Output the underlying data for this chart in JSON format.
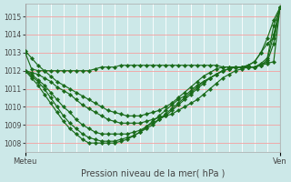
{
  "title": "Pression niveau de la mer( hPa )",
  "xlabel_left": "Meteu",
  "xlabel_right": "Ven",
  "ylim": [
    1007.5,
    1015.7
  ],
  "yticks": [
    1008,
    1009,
    1010,
    1011,
    1012,
    1013,
    1014,
    1015
  ],
  "bg_color": "#cce8e8",
  "grid_color_h": "#f5a0a0",
  "grid_color_v": "#ffffff",
  "line_color": "#1a6b1a",
  "markersize": 2.2,
  "linewidth": 0.85,
  "series": [
    [
      1013.0,
      1012.1,
      1012.0,
      1012.0,
      1012.0,
      1012.0,
      1012.0,
      1012.0,
      1012.0,
      1012.0,
      1012.0,
      1012.1,
      1012.2,
      1012.2,
      1012.2,
      1012.3,
      1012.3,
      1012.3,
      1012.3,
      1012.3,
      1012.3,
      1012.3,
      1012.3,
      1012.3,
      1012.3,
      1012.3,
      1012.3,
      1012.3,
      1012.3,
      1012.3,
      1012.3,
      1012.2,
      1012.2,
      1012.2,
      1012.2,
      1012.3,
      1012.5,
      1013.0,
      1013.5,
      1013.8,
      1015.5
    ],
    [
      1012.0,
      1011.9,
      1011.8,
      1011.6,
      1011.4,
      1011.1,
      1010.9,
      1010.7,
      1010.4,
      1010.1,
      1009.9,
      1009.7,
      1009.5,
      1009.3,
      1009.2,
      1009.1,
      1009.1,
      1009.1,
      1009.1,
      1009.2,
      1009.3,
      1009.4,
      1009.5,
      1009.6,
      1009.8,
      1010.0,
      1010.2,
      1010.4,
      1010.7,
      1011.0,
      1011.3,
      1011.6,
      1011.8,
      1012.0,
      1012.1,
      1012.2,
      1012.2,
      1012.3,
      1012.4,
      1012.5,
      1015.5
    ],
    [
      1012.0,
      1011.8,
      1011.5,
      1011.2,
      1010.8,
      1010.4,
      1010.0,
      1009.7,
      1009.3,
      1009.0,
      1008.8,
      1008.6,
      1008.5,
      1008.5,
      1008.5,
      1008.5,
      1008.5,
      1008.6,
      1008.7,
      1008.9,
      1009.1,
      1009.3,
      1009.5,
      1009.8,
      1010.1,
      1010.4,
      1010.7,
      1011.0,
      1011.3,
      1011.6,
      1011.8,
      1012.0,
      1012.1,
      1012.2,
      1012.2,
      1012.2,
      1012.2,
      1012.3,
      1012.5,
      1013.5,
      1015.5
    ],
    [
      1012.0,
      1011.7,
      1011.4,
      1011.0,
      1010.5,
      1010.0,
      1009.5,
      1009.1,
      1008.8,
      1008.5,
      1008.3,
      1008.2,
      1008.1,
      1008.1,
      1008.1,
      1008.2,
      1008.3,
      1008.4,
      1008.6,
      1008.8,
      1009.0,
      1009.3,
      1009.6,
      1009.9,
      1010.2,
      1010.5,
      1010.8,
      1011.1,
      1011.4,
      1011.6,
      1011.8,
      1012.0,
      1012.1,
      1012.2,
      1012.2,
      1012.2,
      1012.2,
      1012.3,
      1012.6,
      1014.0,
      1015.5
    ],
    [
      1012.0,
      1011.6,
      1011.2,
      1010.7,
      1010.2,
      1009.7,
      1009.2,
      1008.8,
      1008.5,
      1008.2,
      1008.0,
      1008.0,
      1008.0,
      1008.0,
      1008.0,
      1008.1,
      1008.2,
      1008.4,
      1008.6,
      1008.9,
      1009.2,
      1009.5,
      1009.8,
      1010.1,
      1010.4,
      1010.6,
      1010.9,
      1011.2,
      1011.4,
      1011.6,
      1011.8,
      1012.0,
      1012.1,
      1012.2,
      1012.2,
      1012.2,
      1012.2,
      1012.4,
      1012.7,
      1014.5,
      1015.5
    ],
    [
      1013.1,
      1012.7,
      1012.3,
      1012.0,
      1011.7,
      1011.4,
      1011.2,
      1011.0,
      1010.8,
      1010.6,
      1010.4,
      1010.2,
      1010.0,
      1009.8,
      1009.7,
      1009.6,
      1009.5,
      1009.5,
      1009.5,
      1009.6,
      1009.7,
      1009.8,
      1010.0,
      1010.2,
      1010.5,
      1010.8,
      1011.1,
      1011.4,
      1011.7,
      1011.9,
      1012.1,
      1012.2,
      1012.2,
      1012.2,
      1012.2,
      1012.3,
      1012.5,
      1013.0,
      1013.8,
      1014.8,
      1015.5
    ]
  ],
  "n_points": 41,
  "vline_color": "#888888",
  "tick_color": "#444444",
  "label_fontsize": 6,
  "ytick_fontsize": 5.5,
  "xlabel_fontsize": 7
}
